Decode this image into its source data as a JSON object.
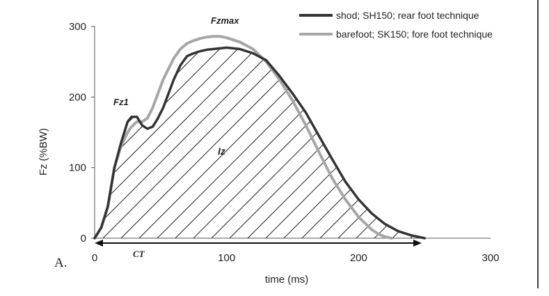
{
  "chart_data": {
    "type": "line",
    "panel_label": "A.",
    "xlabel": "time (ms)",
    "ylabel": "Fz (%BW)",
    "xlim": [
      0,
      300
    ],
    "ylim": [
      0,
      300
    ],
    "x_ticks": [
      0,
      100,
      200,
      300
    ],
    "y_ticks": [
      0,
      100,
      200,
      300
    ],
    "grid": false,
    "legend_position": "top-right",
    "series": [
      {
        "name": "shod; SH150; rear foot technique",
        "color": "#333333",
        "x": [
          0,
          5,
          10,
          15,
          20,
          25,
          28,
          32,
          36,
          40,
          44,
          48,
          52,
          56,
          60,
          65,
          70,
          75,
          80,
          85,
          90,
          100,
          110,
          120,
          130,
          140,
          150,
          160,
          170,
          180,
          190,
          200,
          210,
          220,
          230,
          240,
          245,
          250
        ],
        "values": [
          0,
          15,
          45,
          100,
          135,
          165,
          172,
          172,
          160,
          155,
          158,
          170,
          185,
          205,
          225,
          245,
          258,
          262,
          265,
          267,
          268,
          270,
          268,
          262,
          252,
          230,
          205,
          178,
          145,
          112,
          80,
          55,
          35,
          20,
          10,
          4,
          2,
          0
        ]
      },
      {
        "name": "barefoot; SK150; fore foot technique",
        "color": "#a6a6a6",
        "x": [
          0,
          5,
          10,
          15,
          20,
          25,
          28,
          32,
          36,
          40,
          44,
          48,
          52,
          56,
          60,
          65,
          70,
          75,
          80,
          85,
          90,
          95,
          100,
          110,
          120,
          130,
          140,
          150,
          160,
          170,
          180,
          190,
          200,
          210,
          215,
          220,
          225
        ],
        "values": [
          0,
          15,
          45,
          100,
          130,
          150,
          158,
          165,
          165,
          170,
          185,
          205,
          225,
          240,
          255,
          268,
          276,
          280,
          283,
          285,
          286,
          286,
          284,
          278,
          268,
          250,
          225,
          195,
          160,
          122,
          85,
          55,
          30,
          12,
          6,
          2,
          0
        ]
      }
    ],
    "annotations": {
      "fz1": "Fz1",
      "fzmax": "Fzmax",
      "iz": "Iz",
      "ct": "CT"
    }
  }
}
